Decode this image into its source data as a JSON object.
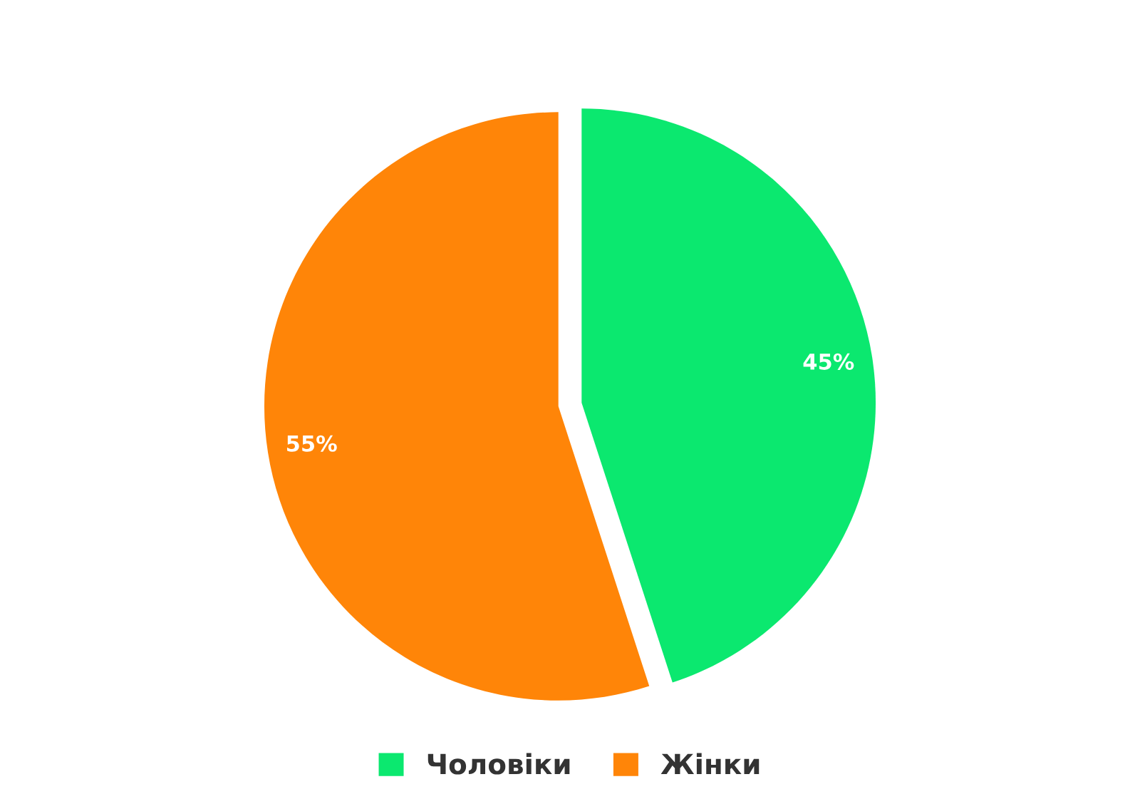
{
  "chart_data": {
    "type": "pie",
    "categories": [
      "Чоловіки",
      "Жінки"
    ],
    "values": [
      45,
      55
    ],
    "value_labels": [
      "45%",
      "55%"
    ],
    "colors": [
      "#0be86f",
      "#ff8508"
    ],
    "legend": "bottom"
  }
}
